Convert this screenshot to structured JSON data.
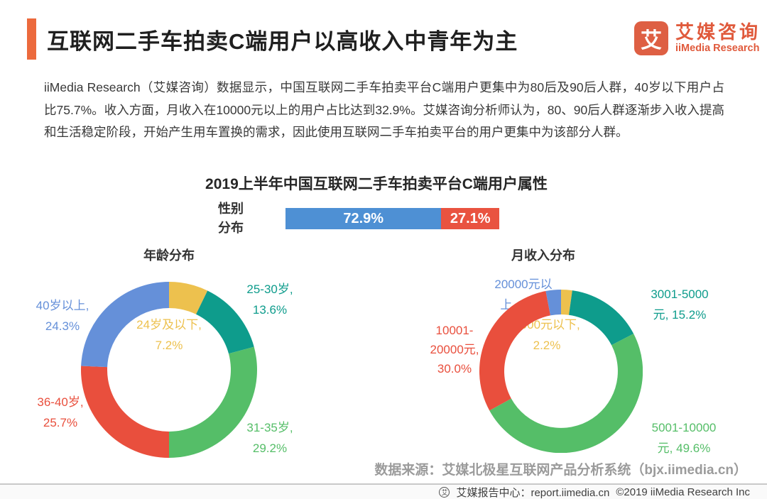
{
  "header": {
    "title": "互联网二手车拍卖C端用户以高收入中青年为主",
    "accent_color": "#EC6A3D",
    "logo": {
      "mark": "艾",
      "brand_cn": "艾媒咨询",
      "brand_en": "iiMedia Research",
      "color": "#E05A3C"
    }
  },
  "intro_paragraph": "iiMedia Research（艾媒咨询）数据显示，中国互联网二手车拍卖平台C端用户更集中为80后及90后人群，40岁以下用户占比75.7%。收入方面，月收入在10000元以上的用户占比达到32.9%。艾媒咨询分析师认为，80、90后人群逐渐步入收入提高和生活稳定阶段，开始产生用车置换的需求，因此使用互联网二手车拍卖平台的用户更集中为该部分人群。",
  "section_title": "2019上半年中国互联网二手车拍卖平台C端用户属性",
  "chart_data": [
    {
      "type": "bar",
      "subtype": "stacked-horizontal",
      "row_label": "性别\n分布",
      "segments": [
        {
          "label": "72.9%",
          "value": 72.9,
          "color": "#4E90D4"
        },
        {
          "label": "27.1%",
          "value": 27.1,
          "color": "#E95340"
        }
      ]
    },
    {
      "type": "pie",
      "subtype": "donut",
      "title": "年龄分布",
      "start_angle_deg": -90,
      "direction": "clockwise",
      "segments": [
        {
          "category": "24岁及以下",
          "value": 7.2,
          "color": "#EDC14E",
          "label": "24岁及以下,\n7.2%"
        },
        {
          "category": "25-30岁",
          "value": 13.6,
          "color": "#0E9C8C",
          "label": "25-30岁,\n13.6%"
        },
        {
          "category": "31-35岁",
          "value": 29.2,
          "color": "#55BE68",
          "label": "31-35岁,\n29.2%"
        },
        {
          "category": "36-40岁",
          "value": 25.7,
          "color": "#E94F3D",
          "label": "36-40岁,\n25.7%"
        },
        {
          "category": "40岁以上",
          "value": 24.3,
          "color": "#6590D9",
          "label": "40岁以上,\n24.3%"
        }
      ]
    },
    {
      "type": "pie",
      "subtype": "donut",
      "title": "月收入分布",
      "start_angle_deg": -90,
      "direction": "clockwise",
      "segments": [
        {
          "category": "3000元以下",
          "value": 2.2,
          "color": "#EDC14E",
          "label": "3000元以下,\n2.2%"
        },
        {
          "category": "3001-5000元",
          "value": 15.2,
          "color": "#0E9C8C",
          "label": "3001-5000\n元, 15.2%"
        },
        {
          "category": "5001-10000元",
          "value": 49.6,
          "color": "#55BE68",
          "label": "5001-10000\n元, 49.6%"
        },
        {
          "category": "10001-20000元",
          "value": 30.0,
          "color": "#E94F3D",
          "label": "10001-\n20000元,\n30.0%"
        },
        {
          "category": "20000元以上",
          "value": 3.0,
          "color": "#6590D9",
          "label": "20000元以\n上, 3.0%"
        }
      ]
    }
  ],
  "data_source": "数据来源：艾媒北极星互联网产品分析系统（bjx.iimedia.cn）",
  "footer": {
    "report_center": "艾媒报告中心：report.iimedia.cn",
    "copyright": "©2019  iiMedia Research Inc"
  }
}
